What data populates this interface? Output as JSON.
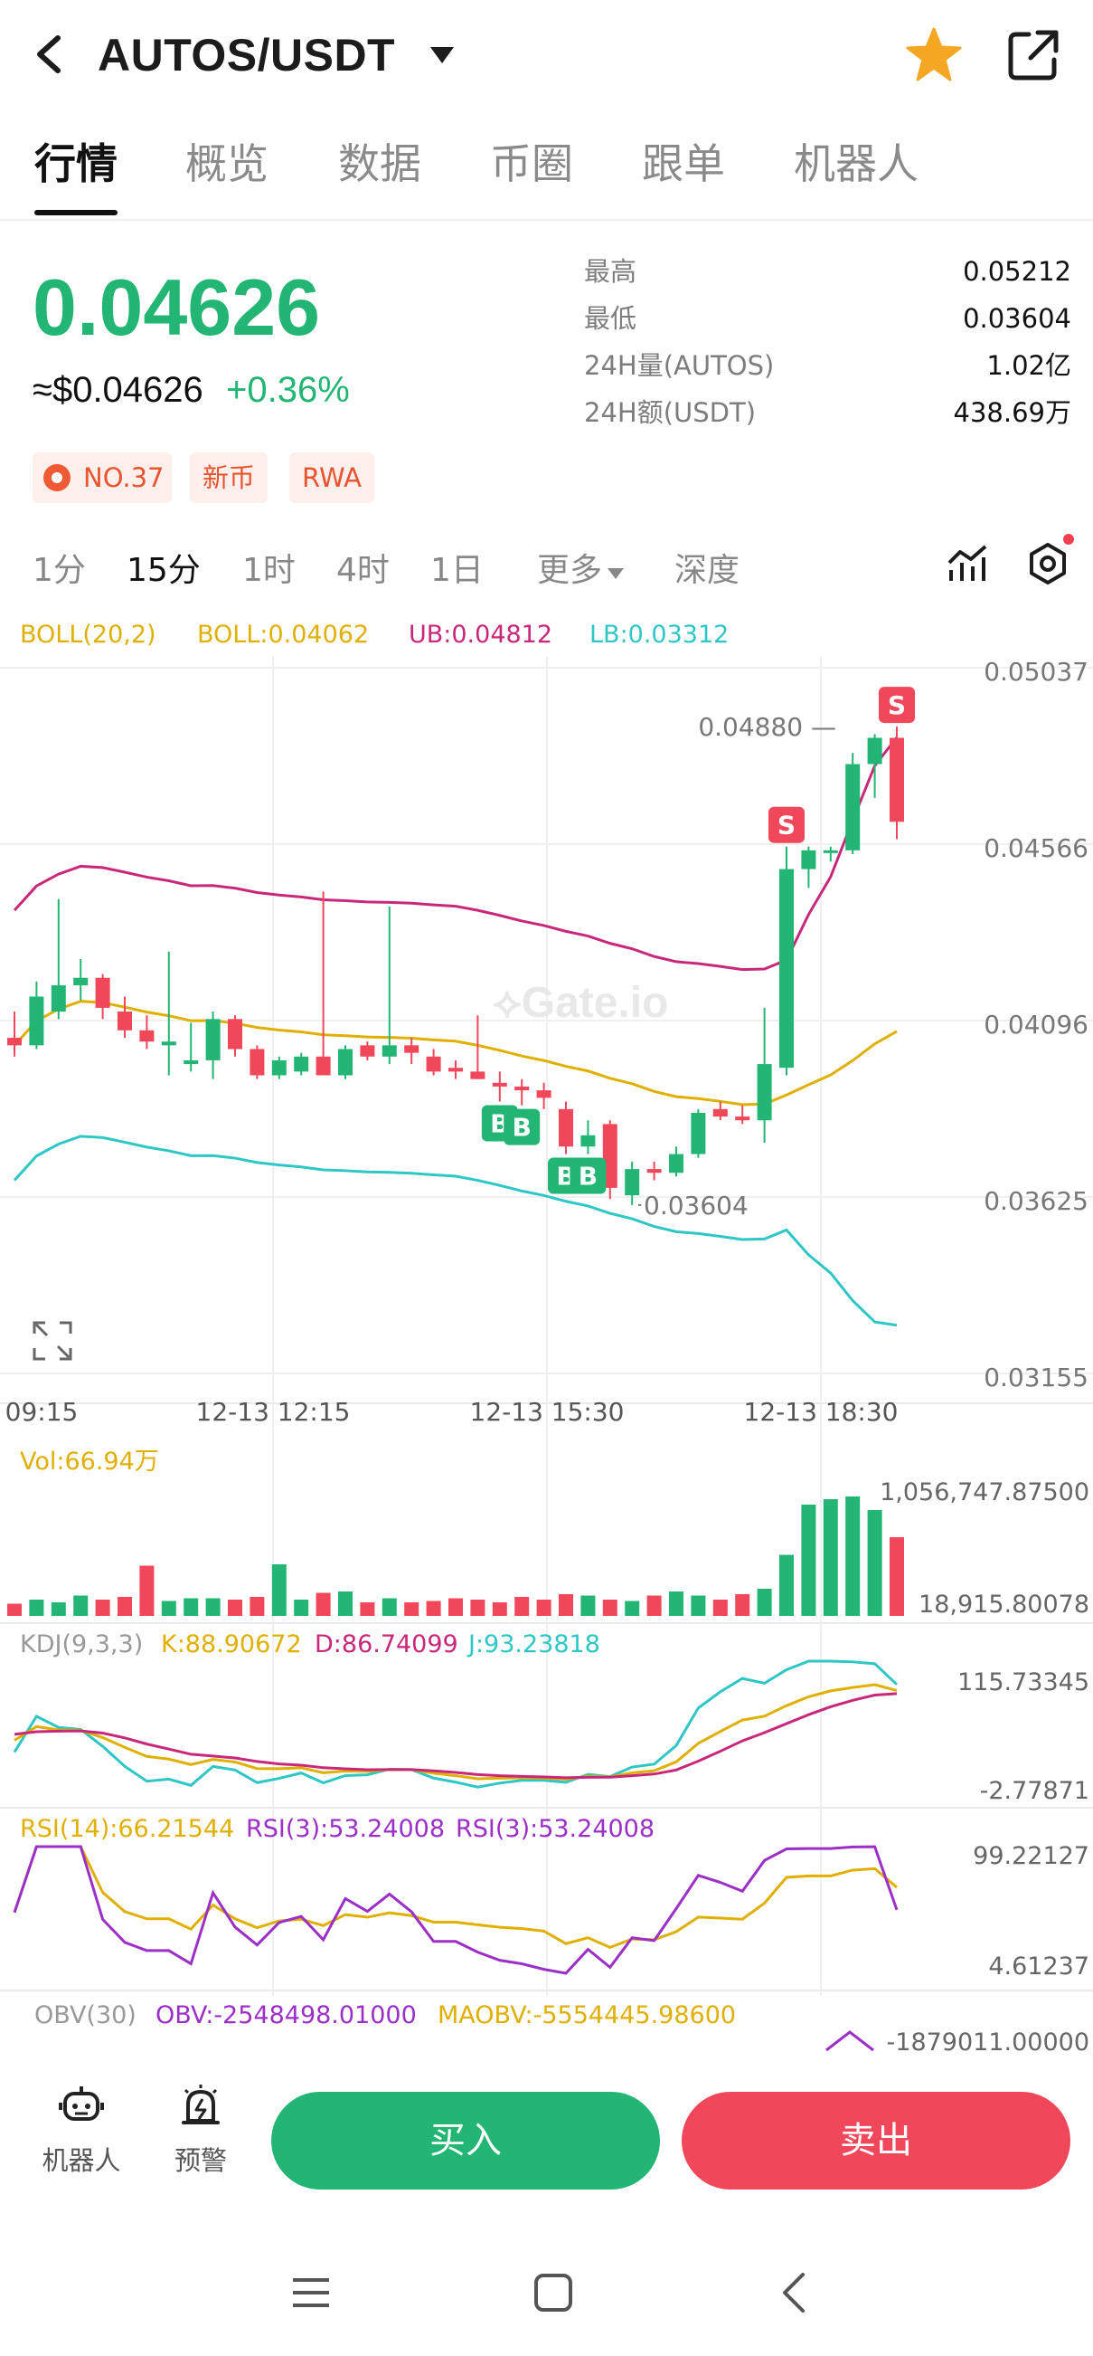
{
  "header": {
    "title": "AUTOS/USDT"
  },
  "tabs": [
    {
      "label": "行情"
    },
    {
      "label": "概览"
    },
    {
      "label": "数据"
    },
    {
      "label": "币圈"
    },
    {
      "label": "跟单"
    },
    {
      "label": "机器人"
    }
  ],
  "price": {
    "last": "0.04626",
    "usd": "≈$0.04626",
    "change_pct": "+0.36%"
  },
  "stats": [
    {
      "label": "最高",
      "value": "0.05212"
    },
    {
      "label": "最低",
      "value": "0.03604"
    },
    {
      "label": "24H量(AUTOS)",
      "value": "1.02亿"
    },
    {
      "label": "24H额(USDT)",
      "value": "438.69万"
    }
  ],
  "tags": {
    "rank": "NO.37",
    "new": "新币",
    "rwa": "RWA"
  },
  "intervals": [
    {
      "label": "1分"
    },
    {
      "label": "15分"
    },
    {
      "label": "1时"
    },
    {
      "label": "4时"
    },
    {
      "label": "1日"
    },
    {
      "label": "更多"
    },
    {
      "label": "深度"
    }
  ],
  "colors": {
    "up": "#22b573",
    "down": "#f0485a",
    "boll_mid": "#e0b000",
    "boll_ub": "#c8287a",
    "boll_lb": "#2fc6c6",
    "kdj_k": "#e0b000",
    "kdj_d": "#c8287a",
    "kdj_j": "#2fc6c6",
    "rsi14": "#e0b000",
    "rsi3": "#9b2fc6"
  },
  "indicators": {
    "boll_name": "BOLL(20,2)",
    "boll_mid": "BOLL:0.04062",
    "boll_ub": "UB:0.04812",
    "boll_lb": "LB:0.03312",
    "vol": "Vol:66.94万",
    "kdj_name": "KDJ(9,3,3)",
    "kdj_k": "K:88.90672",
    "kdj_d": "D:86.74099",
    "kdj_j": "J:93.23818",
    "rsi14": "RSI(14):66.21544",
    "rsi3a": "RSI(3):53.24008",
    "rsi3b": "RSI(3):53.24008",
    "obv_name": "OBV(30)",
    "obv": "OBV:-2548498.01000",
    "maobv": "MAOBV:-5554445.98600"
  },
  "chart_data": {
    "type": "candlestick",
    "price_axis": [
      "0.05037",
      "0.04566",
      "0.04096",
      "0.03625",
      "0.03155"
    ],
    "time_axis": [
      "09:15",
      "12-13 12:15",
      "12-13 15:30",
      "12-13 18:30"
    ],
    "vol_axis": [
      "1,056,747.87500",
      "18,915.80078"
    ],
    "kdj_axis": [
      "115.73345",
      "-2.77871"
    ],
    "rsi_axis": [
      "99.22127",
      "4.61237"
    ],
    "obv_axis": [
      "-1879011.00000"
    ],
    "max_label": "0.04880",
    "min_label": "0.03604",
    "ylim": [
      0.03155,
      0.05037
    ],
    "candles": [
      {
        "o": 0.0405,
        "h": 0.0412,
        "l": 0.04,
        "c": 0.0403
      },
      {
        "o": 0.0403,
        "h": 0.042,
        "l": 0.0402,
        "c": 0.0416
      },
      {
        "o": 0.0412,
        "h": 0.0442,
        "l": 0.041,
        "c": 0.0419
      },
      {
        "o": 0.0419,
        "h": 0.0426,
        "l": 0.0415,
        "c": 0.0421
      },
      {
        "o": 0.0421,
        "h": 0.0422,
        "l": 0.041,
        "c": 0.0413
      },
      {
        "o": 0.0412,
        "h": 0.0416,
        "l": 0.0405,
        "c": 0.0407
      },
      {
        "o": 0.0407,
        "h": 0.0411,
        "l": 0.0402,
        "c": 0.0404
      },
      {
        "o": 0.0403,
        "h": 0.0428,
        "l": 0.0395,
        "c": 0.0404
      },
      {
        "o": 0.0398,
        "h": 0.0409,
        "l": 0.0396,
        "c": 0.0399
      },
      {
        "o": 0.0399,
        "h": 0.0412,
        "l": 0.0394,
        "c": 0.041
      },
      {
        "o": 0.041,
        "h": 0.0411,
        "l": 0.04,
        "c": 0.0402
      },
      {
        "o": 0.0402,
        "h": 0.0403,
        "l": 0.0394,
        "c": 0.0395
      },
      {
        "o": 0.0395,
        "h": 0.04,
        "l": 0.0394,
        "c": 0.0399
      },
      {
        "o": 0.0396,
        "h": 0.0401,
        "l": 0.0395,
        "c": 0.04
      },
      {
        "o": 0.04,
        "h": 0.0444,
        "l": 0.0396,
        "c": 0.0395
      },
      {
        "o": 0.0395,
        "h": 0.0403,
        "l": 0.0394,
        "c": 0.0402
      },
      {
        "o": 0.0403,
        "h": 0.0404,
        "l": 0.0399,
        "c": 0.04
      },
      {
        "o": 0.04,
        "h": 0.044,
        "l": 0.0398,
        "c": 0.0403
      },
      {
        "o": 0.0403,
        "h": 0.0405,
        "l": 0.0398,
        "c": 0.0401
      },
      {
        "o": 0.04,
        "h": 0.0402,
        "l": 0.0395,
        "c": 0.0396
      },
      {
        "o": 0.0397,
        "h": 0.0399,
        "l": 0.0394,
        "c": 0.0396
      },
      {
        "o": 0.0396,
        "h": 0.0411,
        "l": 0.0394,
        "c": 0.0394
      },
      {
        "o": 0.0393,
        "h": 0.0396,
        "l": 0.0388,
        "c": 0.0392
      },
      {
        "o": 0.0392,
        "h": 0.0394,
        "l": 0.0387,
        "c": 0.0391
      },
      {
        "o": 0.0391,
        "h": 0.0393,
        "l": 0.0386,
        "c": 0.0389
      },
      {
        "o": 0.0386,
        "h": 0.0388,
        "l": 0.0374,
        "c": 0.0376
      },
      {
        "o": 0.0376,
        "h": 0.0383,
        "l": 0.0374,
        "c": 0.0379
      },
      {
        "o": 0.0382,
        "h": 0.0383,
        "l": 0.0362,
        "c": 0.0365
      },
      {
        "o": 0.0363,
        "h": 0.0372,
        "l": 0.03604,
        "c": 0.037
      },
      {
        "o": 0.037,
        "h": 0.0372,
        "l": 0.0367,
        "c": 0.0369
      },
      {
        "o": 0.0369,
        "h": 0.0376,
        "l": 0.0368,
        "c": 0.0374
      },
      {
        "o": 0.0374,
        "h": 0.0386,
        "l": 0.0373,
        "c": 0.0385
      },
      {
        "o": 0.0386,
        "h": 0.0388,
        "l": 0.0383,
        "c": 0.0384
      },
      {
        "o": 0.0384,
        "h": 0.0387,
        "l": 0.0382,
        "c": 0.0383
      },
      {
        "o": 0.0383,
        "h": 0.0413,
        "l": 0.0377,
        "c": 0.0398
      },
      {
        "o": 0.0397,
        "h": 0.0456,
        "l": 0.0395,
        "c": 0.045
      },
      {
        "o": 0.045,
        "h": 0.0456,
        "l": 0.0445,
        "c": 0.0455
      },
      {
        "o": 0.0455,
        "h": 0.0456,
        "l": 0.0452,
        "c": 0.0455
      },
      {
        "o": 0.0455,
        "h": 0.0481,
        "l": 0.0454,
        "c": 0.0478
      },
      {
        "o": 0.0478,
        "h": 0.0486,
        "l": 0.0469,
        "c": 0.0485
      },
      {
        "o": 0.0485,
        "h": 0.0488,
        "l": 0.0458,
        "c": 0.04626
      }
    ],
    "volume": [
      0.09,
      0.12,
      0.1,
      0.15,
      0.12,
      0.14,
      0.37,
      0.11,
      0.13,
      0.13,
      0.12,
      0.14,
      0.38,
      0.12,
      0.17,
      0.18,
      0.1,
      0.13,
      0.1,
      0.11,
      0.13,
      0.12,
      0.1,
      0.14,
      0.12,
      0.16,
      0.15,
      0.12,
      0.11,
      0.15,
      0.18,
      0.15,
      0.12,
      0.16,
      0.2,
      0.45,
      0.82,
      0.86,
      0.88,
      0.78,
      0.58
    ],
    "signals": [
      {
        "label": "S",
        "idx": 35
      },
      {
        "label": "S",
        "idx": 40
      },
      {
        "label": "B",
        "idx": 22
      },
      {
        "label": "B",
        "idx": 23
      },
      {
        "label": "B",
        "idx": 25
      },
      {
        "label": "B",
        "idx": 26
      }
    ]
  },
  "actions": {
    "robot": "机器人",
    "alert": "预警",
    "buy": "买入",
    "sell": "卖出"
  }
}
